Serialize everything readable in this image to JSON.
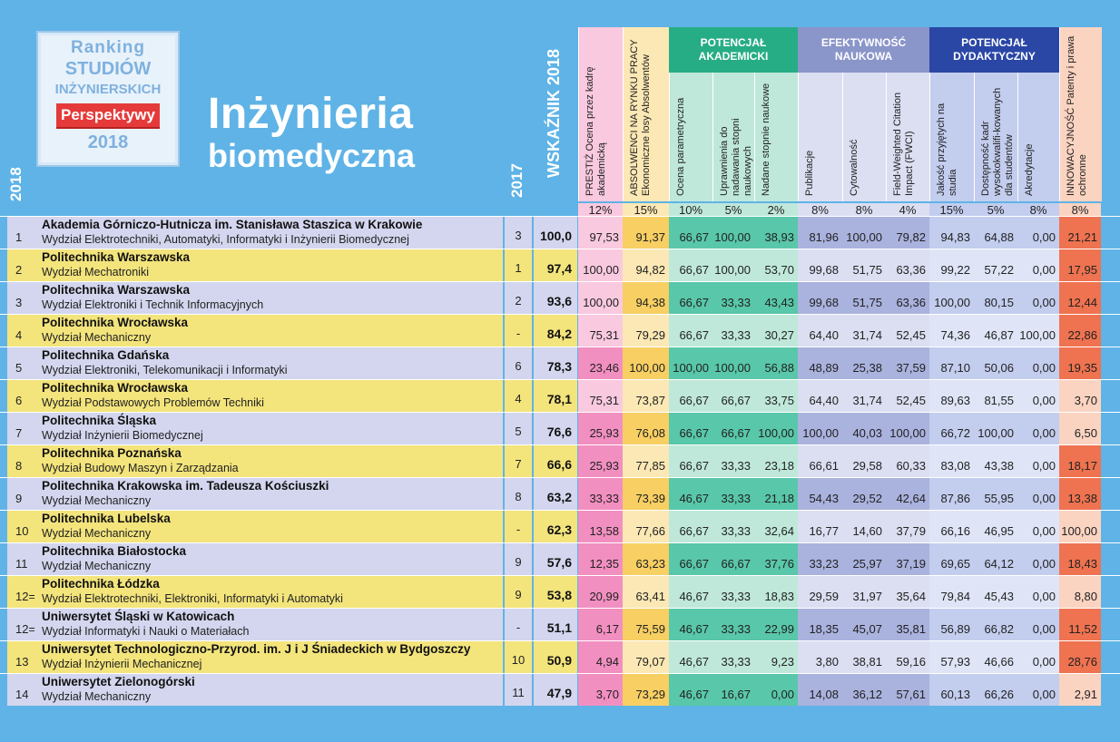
{
  "badge": {
    "line1": "Ranking",
    "line2": "STUDIÓW",
    "line3": "INŻYNIERSKICH",
    "ribbon": "Perspektywy",
    "year": "2018"
  },
  "title": {
    "line1": "Inżynieria",
    "line2": "biomedyczna"
  },
  "headers": {
    "rank_2018": "2018",
    "rank_2017": "2017",
    "wskaznik": "WSKAŹNIK 2018",
    "groups": [
      {
        "label": "POTENCJAŁ AKADEMICKI"
      },
      {
        "label": "EFEKTYWNOŚĆ NAUKOWA"
      },
      {
        "label": "POTENCJAŁ DYDAKTYCZNY"
      }
    ],
    "columns": [
      {
        "label": "PRESTIŻ Ocena przez kadrę akademicką",
        "weight": "12%"
      },
      {
        "label": "ABSOLWENCI NA RYNKU PRACY Ekonomiczne losy Absolwentów",
        "weight": "15%"
      },
      {
        "label": "Ocena parametryczna",
        "weight": "10%"
      },
      {
        "label": "Uprawnienia do nadawania stopni naukowych",
        "weight": "5%"
      },
      {
        "label": "Nadane stopnie naukowe",
        "weight": "2%"
      },
      {
        "label": "Publikacje",
        "weight": "8%"
      },
      {
        "label": "Cytowalność",
        "weight": "8%"
      },
      {
        "label": "Field-Weighted Citation Impact (FWCI)",
        "weight": "4%"
      },
      {
        "label": "Jakość przyjętych na studia",
        "weight": "15%"
      },
      {
        "label": "Dostępność kadr wysokokwalifi-kowanych dla studentów",
        "weight": "5%"
      },
      {
        "label": "Akredytacje",
        "weight": "8%"
      },
      {
        "label": "INNOWACYJNOŚĆ Patenty i prawa ochronne",
        "weight": "8%"
      }
    ]
  },
  "rows": [
    {
      "rank": "1",
      "university": "Akademia Górniczo-Hutnicza im. Stanisława Staszica w Krakowie",
      "faculty": "Wydział Elektrotechniki, Automatyki, Informatyki i Inżynierii Biomedycznej",
      "rank_2017": "3",
      "score": "100,0",
      "values": [
        "97,53",
        "91,37",
        "66,67",
        "100,00",
        "38,93",
        "81,96",
        "100,00",
        "79,82",
        "94,83",
        "64,88",
        "0,00",
        "21,21"
      ]
    },
    {
      "rank": "2",
      "university": "Politechnika Warszawska",
      "faculty": "Wydział Mechatroniki",
      "rank_2017": "1",
      "score": "97,4",
      "values": [
        "100,00",
        "94,82",
        "66,67",
        "100,00",
        "53,70",
        "99,68",
        "51,75",
        "63,36",
        "99,22",
        "57,22",
        "0,00",
        "17,95"
      ]
    },
    {
      "rank": "3",
      "university": "Politechnika Warszawska",
      "faculty": "Wydział Elektroniki i Technik Informacyjnych",
      "rank_2017": "2",
      "score": "93,6",
      "values": [
        "100,00",
        "94,38",
        "66,67",
        "33,33",
        "43,43",
        "99,68",
        "51,75",
        "63,36",
        "100,00",
        "80,15",
        "0,00",
        "12,44"
      ]
    },
    {
      "rank": "4",
      "university": "Politechnika Wrocławska",
      "faculty": "Wydział Mechaniczny",
      "rank_2017": "-",
      "score": "84,2",
      "values": [
        "75,31",
        "79,29",
        "66,67",
        "33,33",
        "30,27",
        "64,40",
        "31,74",
        "52,45",
        "74,36",
        "46,87",
        "100,00",
        "22,86"
      ]
    },
    {
      "rank": "5",
      "university": "Politechnika Gdańska",
      "faculty": "Wydział Elektroniki, Telekomunikacji i Informatyki",
      "rank_2017": "6",
      "score": "78,3",
      "values": [
        "23,46",
        "100,00",
        "100,00",
        "100,00",
        "56,88",
        "48,89",
        "25,38",
        "37,59",
        "87,10",
        "50,06",
        "0,00",
        "19,35"
      ]
    },
    {
      "rank": "6",
      "university": "Politechnika Wrocławska",
      "faculty": "Wydział Podstawowych Problemów Techniki",
      "rank_2017": "4",
      "score": "78,1",
      "values": [
        "75,31",
        "73,87",
        "66,67",
        "66,67",
        "33,75",
        "64,40",
        "31,74",
        "52,45",
        "89,63",
        "81,55",
        "0,00",
        "3,70"
      ]
    },
    {
      "rank": "7",
      "university": "Politechnika Śląska",
      "faculty": "Wydział Inżynierii Biomedycznej",
      "rank_2017": "5",
      "score": "76,6",
      "values": [
        "25,93",
        "76,08",
        "66,67",
        "66,67",
        "100,00",
        "100,00",
        "40,03",
        "100,00",
        "66,72",
        "100,00",
        "0,00",
        "6,50"
      ]
    },
    {
      "rank": "8",
      "university": "Politechnika Poznańska",
      "faculty": "Wydział Budowy Maszyn i Zarządzania",
      "rank_2017": "7",
      "score": "66,6",
      "values": [
        "25,93",
        "77,85",
        "66,67",
        "33,33",
        "23,18",
        "66,61",
        "29,58",
        "60,33",
        "83,08",
        "43,38",
        "0,00",
        "18,17"
      ]
    },
    {
      "rank": "9",
      "university": "Politechnika Krakowska im. Tadeusza Kościuszki",
      "faculty": "Wydział Mechaniczny",
      "rank_2017": "8",
      "score": "63,2",
      "values": [
        "33,33",
        "73,39",
        "46,67",
        "33,33",
        "21,18",
        "54,43",
        "29,52",
        "42,64",
        "87,86",
        "55,95",
        "0,00",
        "13,38"
      ]
    },
    {
      "rank": "10",
      "university": "Politechnika Lubelska",
      "faculty": "Wydział Mechaniczny",
      "rank_2017": "-",
      "score": "62,3",
      "values": [
        "13,58",
        "77,66",
        "66,67",
        "33,33",
        "32,64",
        "16,77",
        "14,60",
        "37,79",
        "66,16",
        "46,95",
        "0,00",
        "100,00"
      ]
    },
    {
      "rank": "11",
      "university": "Politechnika Białostocka",
      "faculty": "Wydział Mechaniczny",
      "rank_2017": "9",
      "score": "57,6",
      "values": [
        "12,35",
        "63,23",
        "66,67",
        "66,67",
        "37,76",
        "33,23",
        "25,97",
        "37,19",
        "69,65",
        "64,12",
        "0,00",
        "18,43"
      ]
    },
    {
      "rank": "12=",
      "university": "Politechnika Łódzka",
      "faculty": "Wydział Elektrotechniki, Elektroniki, Informatyki i Automatyki",
      "rank_2017": "9",
      "score": "53,8",
      "values": [
        "20,99",
        "63,41",
        "46,67",
        "33,33",
        "18,83",
        "29,59",
        "31,97",
        "35,64",
        "79,84",
        "45,43",
        "0,00",
        "8,80"
      ]
    },
    {
      "rank": "12=",
      "university": "Uniwersytet Śląski w Katowicach",
      "faculty": "Wydział Informatyki i Nauki o Materiałach",
      "rank_2017": "-",
      "score": "51,1",
      "values": [
        "6,17",
        "75,59",
        "46,67",
        "33,33",
        "22,99",
        "18,35",
        "45,07",
        "35,81",
        "56,89",
        "66,82",
        "0,00",
        "11,52"
      ]
    },
    {
      "rank": "13",
      "university": "Uniwersytet Technologiczno-Przyrod. im. J i J Śniadeckich w Bydgoszczy",
      "faculty": "Wydział Inżynierii Mechanicznej",
      "rank_2017": "10",
      "score": "50,9",
      "values": [
        "4,94",
        "79,07",
        "46,67",
        "33,33",
        "9,23",
        "3,80",
        "38,81",
        "59,16",
        "57,93",
        "46,66",
        "0,00",
        "28,76"
      ]
    },
    {
      "rank": "14",
      "university": "Uniwersytet Zielonogórski",
      "faculty": "Wydział Mechaniczny",
      "rank_2017": "11",
      "score": "47,9",
      "values": [
        "3,70",
        "73,29",
        "46,67",
        "16,67",
        "0,00",
        "14,08",
        "36,12",
        "57,61",
        "60,13",
        "66,26",
        "0,00",
        "2,91"
      ]
    }
  ],
  "colors": {
    "background": "#5fb3e6",
    "rank_row_light": "#d3d6ee",
    "rank_row_yellow": "#f3e47c",
    "prestige": "#f28fc1",
    "prestige_light": "#f9c9df",
    "graduates": "#f7cf63",
    "graduates_light": "#fbe8b4",
    "academic": "#59c7a9",
    "academic_light": "#bfe8da",
    "scientific": "#aab2de",
    "scientific_light": "#dcdff2",
    "didactic": "#4d6ec3",
    "didactic_light": "#c3cdee",
    "innovation": "#ef7350",
    "innovation_light": "#fbd3c1",
    "group_academic": "#27ad85",
    "group_scientific": "#8a95c9",
    "group_didactic": "#2a47a6"
  }
}
